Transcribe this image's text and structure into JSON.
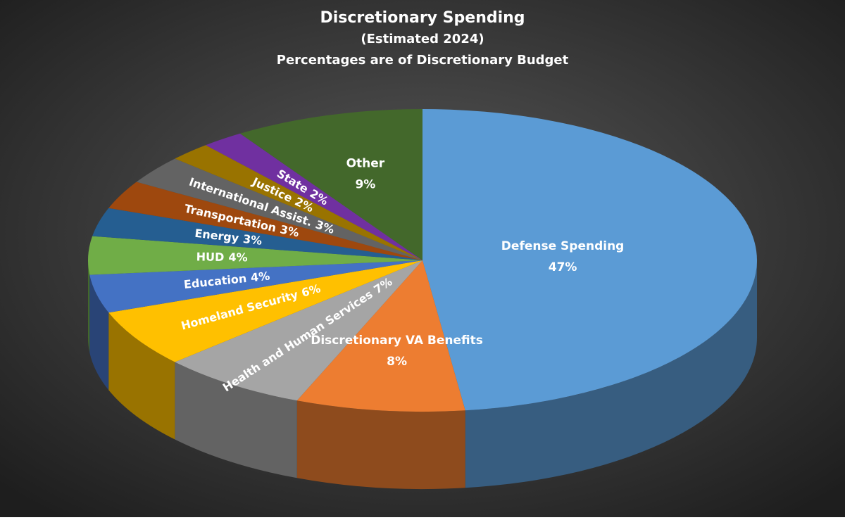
{
  "chart_data": {
    "type": "pie",
    "title": "Discretionary Spending",
    "subtitle": "(Estimated 2024)",
    "caption": "Percentages are of Discretionary Budget",
    "categories": [
      "Defense Spending",
      "Discretionary VA Benefits",
      "Health and Human Services",
      "Homeland Security",
      "Education",
      "HUD",
      "Energy",
      "Transportation",
      "International Assist.",
      "Justice",
      "State",
      "Other"
    ],
    "values": [
      47,
      8,
      7,
      6,
      4,
      4,
      3,
      3,
      3,
      2,
      2,
      9
    ],
    "value_labels": [
      "47%",
      "8%",
      "7%",
      "6%",
      "4%",
      "4%",
      "3%",
      "3%",
      "3%",
      "2%",
      "2%",
      "9%"
    ],
    "colors": [
      "#5b9bd5",
      "#ed7d31",
      "#a5a5a5",
      "#ffc000",
      "#4472c4",
      "#70ad47",
      "#255e91",
      "#9e480e",
      "#636363",
      "#997300",
      "#7030a0",
      "#43682b"
    ]
  }
}
